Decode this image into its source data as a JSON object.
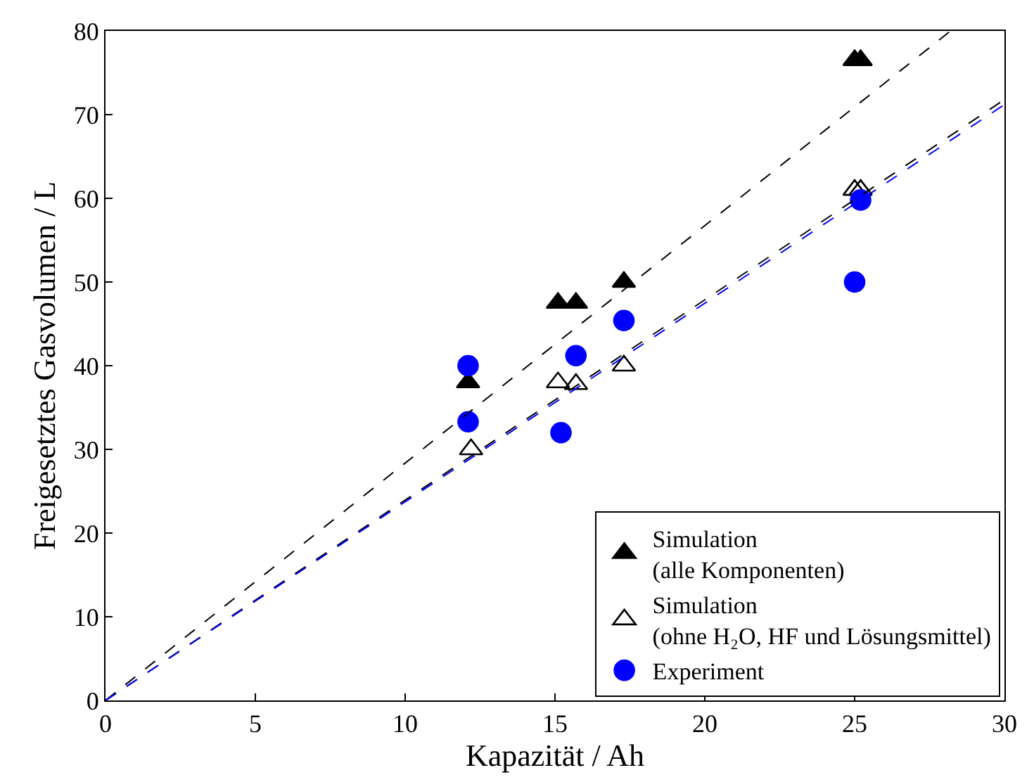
{
  "chart_data": {
    "type": "scatter",
    "xlabel": "Kapazität / Ah",
    "ylabel": "Freigesetztes Gasvolumen / L",
    "xlim": [
      0,
      30
    ],
    "ylim": [
      0,
      80
    ],
    "xticks": [
      0,
      5,
      10,
      15,
      20,
      25,
      30
    ],
    "yticks": [
      0,
      10,
      20,
      30,
      40,
      50,
      60,
      70,
      80
    ],
    "legend": "bottom right",
    "series": [
      {
        "name": "Simulation\n(alle Komponenten)",
        "color": "#000000",
        "marker": "triangle",
        "x": [
          12.1,
          15.1,
          15.7,
          17.3,
          25.0,
          25.2
        ],
        "values": [
          38,
          47.5,
          47.5,
          50,
          76.5,
          76.5
        ]
      },
      {
        "name": "Simulation\n(ohne H₂O, HF und Lösungsmittel)",
        "color": "#000000",
        "marker": "triangle-open",
        "x": [
          12.2,
          15.1,
          15.7,
          17.3,
          25.0,
          25.2
        ],
        "values": [
          30,
          38,
          37.8,
          40,
          61,
          61
        ]
      },
      {
        "name": "Experiment",
        "color": "#0000ff",
        "marker": "circle",
        "x": [
          12.1,
          12.1,
          15.2,
          15.7,
          17.3,
          25.0,
          25.2
        ],
        "values": [
          40,
          33.3,
          32,
          41.2,
          45.4,
          50,
          59.8
        ]
      },
      {
        "type": "line",
        "color": "#000000",
        "line_style": "dashed",
        "x": [
          0,
          28.2
        ],
        "values": [
          0,
          80
        ]
      },
      {
        "type": "line",
        "color": "#000000",
        "line_style": "dashed",
        "x": [
          0,
          30
        ],
        "values": [
          0,
          71.8
        ]
      },
      {
        "type": "line",
        "color": "#0000ff",
        "line_style": "dashed",
        "x": [
          0,
          30
        ],
        "values": [
          0,
          71.2
        ]
      }
    ]
  }
}
